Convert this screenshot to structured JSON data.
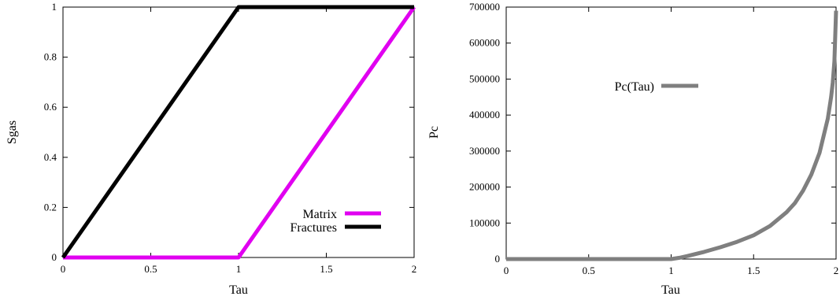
{
  "chart_data": [
    {
      "type": "line",
      "xlabel": "Tau",
      "ylabel": "Sgas",
      "xlim": [
        0,
        2
      ],
      "ylim": [
        0,
        1
      ],
      "x_ticks": [
        "0",
        "0.5",
        "1",
        "1.5",
        "2"
      ],
      "y_ticks": [
        "0",
        "0.2",
        "0.4",
        "0.6",
        "0.8",
        "1"
      ],
      "legend_position": "bottom-right",
      "series": [
        {
          "name": "Matrix",
          "color": "#e000f0",
          "x": [
            0,
            1,
            2
          ],
          "y": [
            0,
            0,
            1
          ]
        },
        {
          "name": "Fractures",
          "color": "#000000",
          "x": [
            0,
            1,
            2
          ],
          "y": [
            0,
            1,
            1
          ]
        }
      ]
    },
    {
      "type": "line",
      "xlabel": "Tau",
      "ylabel": "Pc",
      "xlim": [
        0,
        2
      ],
      "ylim": [
        0,
        700000
      ],
      "x_ticks": [
        "0",
        "0.5",
        "1",
        "1.5",
        "2"
      ],
      "y_ticks": [
        "0",
        "100000",
        "200000",
        "300000",
        "400000",
        "500000",
        "600000",
        "700000"
      ],
      "legend_position": "top-middle",
      "series": [
        {
          "name": "Pc(Tau)",
          "color": "#7f7f7f",
          "x": [
            0,
            1,
            1.05,
            1.1,
            1.2,
            1.3,
            1.4,
            1.5,
            1.6,
            1.7,
            1.75,
            1.8,
            1.85,
            1.9,
            1.95,
            1.97,
            1.98,
            1.99,
            2
          ],
          "y": [
            0,
            0,
            3500,
            8500,
            20000,
            33000,
            48000,
            66000,
            92000,
            130000,
            155000,
            190000,
            235000,
            295000,
            390000,
            450000,
            490000,
            550000,
            690000
          ]
        }
      ]
    }
  ]
}
